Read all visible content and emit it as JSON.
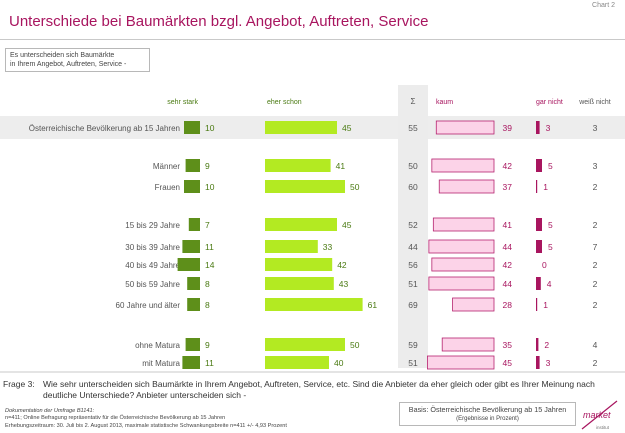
{
  "chart_label": "Chart 2",
  "title": "Unterschiede bei Baumärkten bzgl. Angebot, Auftreten, Service",
  "question_box": [
    "Es unterscheiden sich Baumärkte",
    "in Ihrem Angebot, Auftreten, Service -"
  ],
  "frage_label": "Frage 3:",
  "frage_text": "Wie sehr unterscheiden sich Baumärkte in Ihrem Angebot, Auftreten, Service, etc. Sind die Anbieter da eher gleich oder gibt es Ihrer Meinung nach deutliche Unterschiede? Anbieter unterscheiden sich -",
  "documentation": {
    "title": "Dokumentation der Umfrage B1141:",
    "lines": [
      "n=411; Online Befragung repräsentativ für die Österreichische Bevölkerung ab 15 Jahren",
      "Erhebungszeitraum: 30. Juli bis 2. August 2013, maximale statistische Schwankungsbreite n=411 +/- 4,93 Prozent"
    ]
  },
  "basis": {
    "line1": "Basis: Österreichische Bevölkerung ab 15 Jahren",
    "line2": "(Ergebnisse in Prozent)"
  },
  "logo": {
    "text": "market",
    "subtext": "institut"
  },
  "colors": {
    "title": "#a8155f",
    "sehr_stark": "#5e8f1a",
    "eher_schon": "#b3ea22",
    "kaum": "#fcd3e8",
    "kaum_border": "#b5246f",
    "gar_nicht": "#a8155f",
    "green_text": "#4a7a12",
    "pink_text": "#a8155f",
    "sum_column": "#ececec",
    "row_highlight": "#ededed"
  },
  "chart_data": {
    "type": "bar",
    "headers": {
      "sehr_stark": "sehr stark",
      "eher_schon": "eher schon",
      "sum": "Σ",
      "kaum": "kaum",
      "gar_nicht": "gar nicht",
      "weiss_nicht": "weiß nicht"
    },
    "rows": [
      {
        "label": "Österreichische Bevölkerung ab 15 Jahren",
        "sehr_stark": 10,
        "eher_schon": 45,
        "sum": 55,
        "kaum": 39,
        "gar_nicht": 3,
        "weiss_nicht": 3,
        "highlight": true
      },
      {
        "label": "Männer",
        "sehr_stark": 9,
        "eher_schon": 41,
        "sum": 50,
        "kaum": 42,
        "gar_nicht": 5,
        "weiss_nicht": 3
      },
      {
        "label": "Frauen",
        "sehr_stark": 10,
        "eher_schon": 50,
        "sum": 60,
        "kaum": 37,
        "gar_nicht": 1,
        "weiss_nicht": 2
      },
      {
        "label": "15 bis 29 Jahre",
        "sehr_stark": 7,
        "eher_schon": 45,
        "sum": 52,
        "kaum": 41,
        "gar_nicht": 5,
        "weiss_nicht": 2
      },
      {
        "label": "30 bis 39 Jahre",
        "sehr_stark": 11,
        "eher_schon": 33,
        "sum": 44,
        "kaum": 44,
        "gar_nicht": 5,
        "weiss_nicht": 7
      },
      {
        "label": "40 bis 49 Jahre",
        "sehr_stark": 14,
        "eher_schon": 42,
        "sum": 56,
        "kaum": 42,
        "gar_nicht": 0,
        "weiss_nicht": 2
      },
      {
        "label": "50 bis 59 Jahre",
        "sehr_stark": 8,
        "eher_schon": 43,
        "sum": 51,
        "kaum": 44,
        "gar_nicht": 4,
        "weiss_nicht": 2
      },
      {
        "label": "60 Jahre und älter",
        "sehr_stark": 8,
        "eher_schon": 61,
        "sum": 69,
        "kaum": 28,
        "gar_nicht": 1,
        "weiss_nicht": 2
      },
      {
        "label": "ohne Matura",
        "sehr_stark": 9,
        "eher_schon": 50,
        "sum": 59,
        "kaum": 35,
        "gar_nicht": 2,
        "weiss_nicht": 4
      },
      {
        "label": "mit Matura",
        "sehr_stark": 11,
        "eher_schon": 40,
        "sum": 51,
        "kaum": 45,
        "gar_nicht": 3,
        "weiss_nicht": 2
      }
    ]
  }
}
